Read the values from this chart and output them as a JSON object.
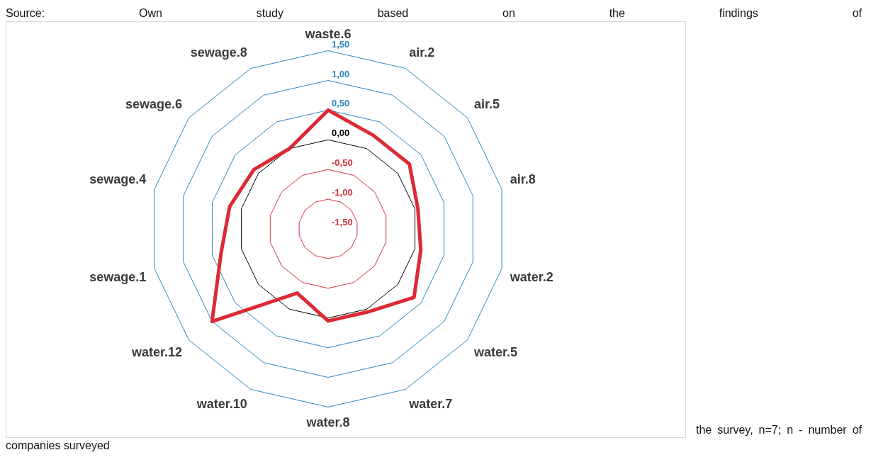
{
  "chart_data": {
    "type": "radar",
    "categories": [
      "waste.6",
      "air.2",
      "air.5",
      "air.8",
      "water.2",
      "water.5",
      "water.7",
      "water.8",
      "water.10",
      "water.12",
      "sewage.1",
      "sewage.4",
      "sewage.6",
      "sewage.8"
    ],
    "series": [
      {
        "color": "#dc2a35",
        "values": [
          0.5,
          0.25,
          0.25,
          0.05,
          0.1,
          0.35,
          0.05,
          0.05,
          -0.3,
          1.0,
          0.35,
          0.2,
          0.1,
          0.0
        ]
      }
    ],
    "ylim": [
      -1.5,
      1.5
    ],
    "yticks": [
      {
        "value": -1.5,
        "label": "-1,50"
      },
      {
        "value": -1.0,
        "label": "-1,00"
      },
      {
        "value": -0.5,
        "label": "-0,50"
      },
      {
        "value": 0,
        "label": "0,00"
      },
      {
        "value": 0.5,
        "label": "0,50"
      },
      {
        "value": 1.0,
        "label": "1,00"
      },
      {
        "value": 1.5,
        "label": "1,50"
      }
    ],
    "grid": true,
    "legend": false,
    "marker": "none",
    "line_style": "solid",
    "annotations": [
      "Source: Own study based on the findings of",
      "the survey, n=7; n - number of companies surveyed"
    ]
  }
}
